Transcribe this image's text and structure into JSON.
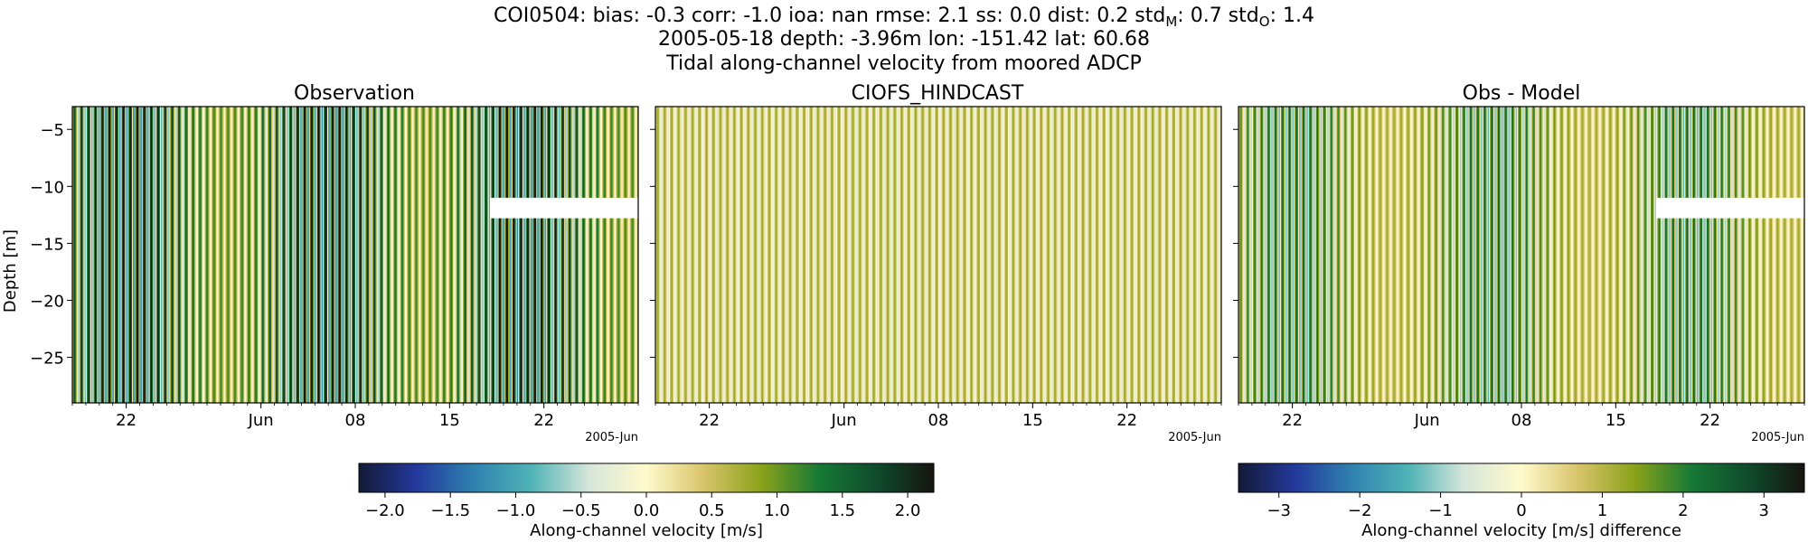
{
  "figure": {
    "title_lines": [
      "COI0504: bias: -0.3  corr: -1.0  ioa: nan  rmse: 2.1  ss: 0.0  dist: 0.2  std",
      "2005-05-18 depth: -3.96m lon: -151.42 lat: 60.68",
      "Tidal along-channel velocity from moored ADCP"
    ],
    "title_line1_main": "COI0504: bias: -0.3  corr: -1.0  ioa: nan  rmse: 2.1  ss: 0.0  dist: 0.2  std",
    "std_m_sub": "M",
    "std_m_value": ": 0.7  std",
    "std_o_sub": "O",
    "std_o_value": ": 1.4",
    "line2": "2005-05-18 depth: -3.96m lon: -151.42 lat: 60.68",
    "line3": "Tidal along-channel velocity from moored ADCP"
  },
  "chart_data": [
    {
      "type": "heatmap",
      "title": "Observation",
      "ylabel": "Depth [m]",
      "ylim": [
        -29,
        -3
      ],
      "yticks": [
        -5,
        -10,
        -15,
        -20,
        -25
      ],
      "ytick_labels": [
        "−5",
        "−10",
        "−15",
        "−20",
        "−25"
      ],
      "xlim": [
        "2005-05-18",
        "2005-06-29"
      ],
      "xticks": [
        "2005-05-22",
        "2005-06-01",
        "2005-06-08",
        "2005-06-15",
        "2005-06-22"
      ],
      "xtick_labels": [
        "22",
        "Jun",
        "08",
        "15",
        "22"
      ],
      "x_offset_label": "2005-Jun",
      "missing_block": {
        "x": [
          "2005-06-18",
          "2005-06-29"
        ],
        "y": [
          -12.8,
          -11
        ]
      },
      "colormap": "delta",
      "color_range": [
        -2.2,
        2.2
      ]
    },
    {
      "type": "heatmap",
      "title": "CIOFS_HINDCAST",
      "ylim": [
        -29,
        -3
      ],
      "xlim": [
        "2005-05-18",
        "2005-06-29"
      ],
      "xticks": [
        "2005-05-22",
        "2005-06-01",
        "2005-06-08",
        "2005-06-15",
        "2005-06-22"
      ],
      "xtick_labels": [
        "22",
        "Jun",
        "08",
        "15",
        "22"
      ],
      "x_offset_label": "2005-Jun",
      "colormap": "delta",
      "color_range": [
        -2.2,
        2.2
      ]
    },
    {
      "type": "heatmap",
      "title": "Obs - Model",
      "ylim": [
        -29,
        -3
      ],
      "xlim": [
        "2005-05-18",
        "2005-06-29"
      ],
      "xticks": [
        "2005-05-22",
        "2005-06-01",
        "2005-06-08",
        "2005-06-15",
        "2005-06-22"
      ],
      "xtick_labels": [
        "22",
        "Jun",
        "08",
        "15",
        "22"
      ],
      "x_offset_label": "2005-Jun",
      "missing_block": {
        "x": [
          "2005-06-18",
          "2005-06-29"
        ],
        "y": [
          -12.8,
          -11
        ]
      },
      "colormap": "delta",
      "color_range": [
        -3.5,
        3.5
      ]
    }
  ],
  "colorbars": [
    {
      "label": "Along-channel velocity [m/s]",
      "range": [
        -2.2,
        2.2
      ],
      "ticks": [
        -2.0,
        -1.5,
        -1.0,
        -0.5,
        0.0,
        0.5,
        1.0,
        1.5,
        2.0
      ],
      "tick_labels": [
        "−2.0",
        "−1.5",
        "−1.0",
        "−0.5",
        "0.0",
        "0.5",
        "1.0",
        "1.5",
        "2.0"
      ]
    },
    {
      "label": "Along-channel velocity [m/s] difference",
      "range": [
        -3.5,
        3.5
      ],
      "ticks": [
        -3,
        -2,
        -1,
        0,
        1,
        2,
        3
      ],
      "tick_labels": [
        "−3",
        "−2",
        "−1",
        "0",
        "1",
        "2",
        "3"
      ]
    }
  ],
  "colormap_stops": [
    "#131a36",
    "#23399c",
    "#2f82b0",
    "#4fb3b6",
    "#d6e6da",
    "#fffacc",
    "#d8c46a",
    "#8aa21a",
    "#177a35",
    "#0f4b2d",
    "#16140e"
  ]
}
